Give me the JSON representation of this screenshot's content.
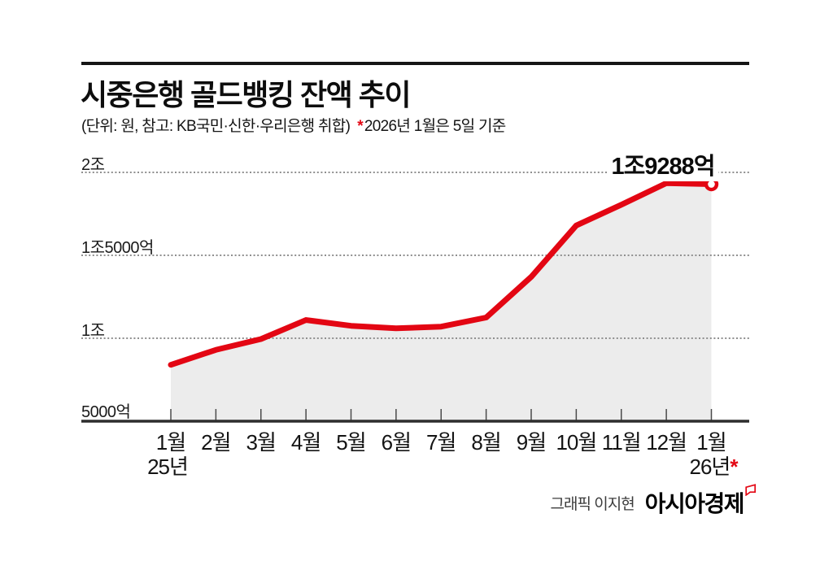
{
  "header": {
    "title": "시중은행 골드뱅킹 잔액 추이",
    "subtitle": "(단위: 원, 참고: KB국민·신한·우리은행 취합)",
    "subtitle_star": "*",
    "subtitle_note": "2026년 1월은 5일 기준"
  },
  "chart_data": {
    "type": "area",
    "title": "시중은행 골드뱅킹 잔액 추이",
    "unit": "억원",
    "categories": [
      "1월",
      "2월",
      "3월",
      "4월",
      "5월",
      "6월",
      "7월",
      "8월",
      "9월",
      "10월",
      "11월",
      "12월",
      "1월"
    ],
    "start_year_label": "25년",
    "end_year_label": "26년",
    "end_year_star": "*",
    "values": [
      8400,
      9300,
      9950,
      11100,
      10750,
      10600,
      10700,
      11250,
      13700,
      16800,
      18050,
      19350,
      19288
    ],
    "final_value_label": "1조9288억",
    "y_ticks": [
      {
        "label": "2조",
        "value": 20000
      },
      {
        "label": "1조5000억",
        "value": 15000
      },
      {
        "label": "1조",
        "value": 10000
      },
      {
        "label": "5000억",
        "value": 5000
      }
    ],
    "ylim": [
      5000,
      20000
    ],
    "line_color": "#e30613",
    "fill_color": "#ececec",
    "grid": "dotted-horizontal",
    "legend": "none"
  },
  "footer": {
    "credit": "그래픽 이지현",
    "brand": "아시아경제"
  }
}
